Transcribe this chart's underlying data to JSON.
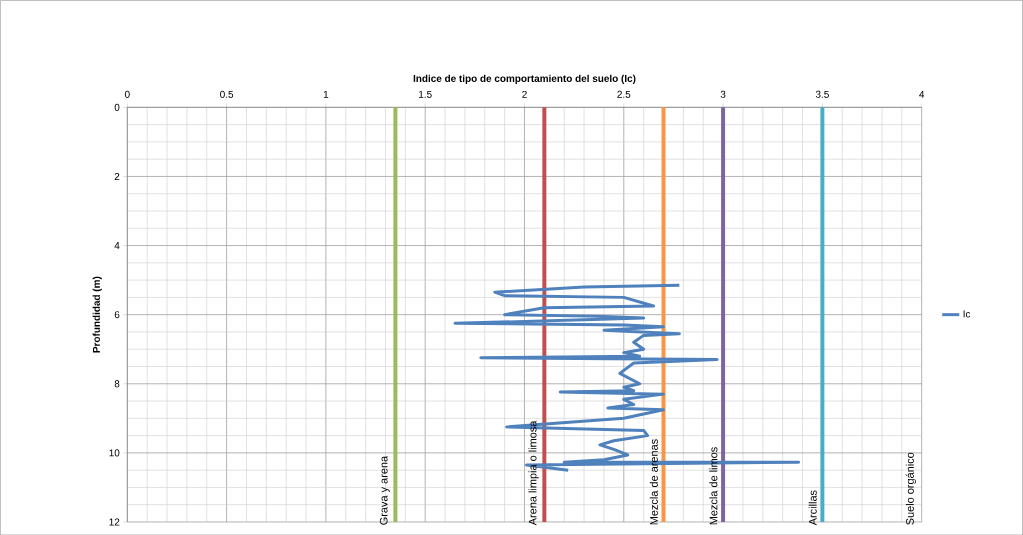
{
  "chart_data": {
    "type": "line",
    "xlabel": "Indice de tipo de comportamiento del suelo (Ic)",
    "ylabel": "Profundidad (m)",
    "xlim": [
      0,
      4
    ],
    "ylim": [
      12,
      0
    ],
    "xticks": [
      0,
      0.5,
      1,
      1.5,
      2,
      2.5,
      3,
      3.5,
      4
    ],
    "yticks": [
      0,
      2,
      4,
      6,
      8,
      10,
      12
    ],
    "grid": true,
    "legend": "right",
    "marker": "none",
    "line_style": "solid",
    "series": [
      {
        "name": "Ic",
        "color": "#4f81bd",
        "x": [
          2.78,
          2.3,
          1.85,
          1.9,
          2.5,
          2.65,
          2.1,
          1.9,
          2.4,
          2.6,
          2.3,
          1.65,
          2.5,
          2.7,
          2.4,
          2.78,
          2.6,
          2.55,
          2.6,
          2.5,
          2.58,
          1.78,
          2.97,
          2.55,
          2.48,
          2.58,
          2.5,
          2.55,
          2.18,
          2.7,
          2.5,
          2.55,
          2.42,
          2.7,
          2.5,
          1.91,
          2.6,
          2.62,
          2.45,
          2.38,
          2.45,
          2.52,
          2.4,
          2.2,
          3.38,
          2.01,
          2.22
        ],
        "values": [
          5.15,
          5.2,
          5.35,
          5.45,
          5.5,
          5.75,
          5.8,
          6.0,
          6.05,
          6.1,
          6.15,
          6.25,
          6.3,
          6.35,
          6.45,
          6.55,
          6.6,
          6.8,
          7.0,
          7.1,
          7.2,
          7.25,
          7.3,
          7.4,
          7.7,
          8.0,
          8.1,
          8.2,
          8.24,
          8.3,
          8.45,
          8.6,
          8.7,
          8.75,
          9.0,
          9.25,
          9.35,
          9.5,
          9.65,
          9.77,
          9.9,
          10.06,
          10.2,
          10.27,
          10.27,
          10.35,
          10.5
        ]
      }
    ],
    "ref_lines": [
      {
        "axis": "x",
        "value": 1.35,
        "color": "#9bbb59"
      },
      {
        "axis": "x",
        "value": 2.1,
        "color": "#c0504d"
      },
      {
        "axis": "x",
        "value": 2.7,
        "color": "#f79646"
      },
      {
        "axis": "x",
        "value": 3.0,
        "color": "#8064a2"
      },
      {
        "axis": "x",
        "value": 3.5,
        "color": "#4bacc6"
      }
    ],
    "annotations": [
      "Grava y arena",
      "Arena limpia o limosa",
      "Mezcla de arenas",
      "Mezcla de limos",
      "Arcillas",
      "Suelo orgánico"
    ]
  }
}
